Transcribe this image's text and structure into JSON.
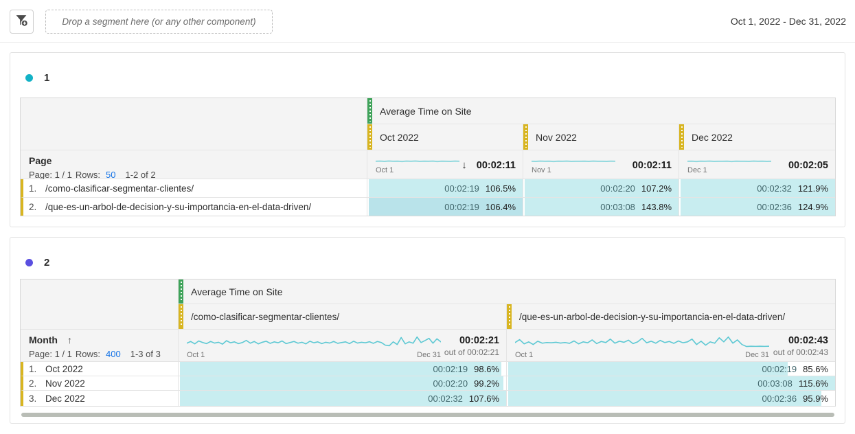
{
  "topbar": {
    "dropzone_text": "Drop a segment here (or any other component)",
    "date_range": "Oct 1, 2022 - Dec 31, 2022"
  },
  "colors": {
    "metric_handle": "#3fa35a",
    "dimension_handle": "#d8b521",
    "panel1_dot": "#13b2c6",
    "panel2_dot": "#5a4fe0",
    "cell_fill": "#c8edf0",
    "link_blue": "#1473e6"
  },
  "icons": {
    "filter": "segment-filter-icon",
    "sort_descending": "↓",
    "sort_ascending": "↑"
  },
  "panel1": {
    "title": "1",
    "metric_header": "Average Time on Site",
    "dim_header": "Page",
    "pagination": {
      "page_info": "Page: 1 / 1",
      "rows_label": "Rows:",
      "rows_value": "50",
      "range": "1-2 of 2"
    },
    "columns": [
      {
        "label": "Oct 2022",
        "spark_start": "Oct 1",
        "total": "00:02:11"
      },
      {
        "label": "Nov 2022",
        "spark_start": "Nov 1",
        "total": "00:02:11"
      },
      {
        "label": "Dec 2022",
        "spark_start": "Dec 1",
        "total": "00:02:05"
      }
    ],
    "rows": [
      {
        "num": "1.",
        "label": "/como-clasificar-segmentar-clientes/",
        "cells": [
          {
            "time": "00:02:19",
            "pct": "106.5%",
            "fill": 100
          },
          {
            "time": "00:02:20",
            "pct": "107.2%",
            "fill": 100
          },
          {
            "time": "00:02:32",
            "pct": "121.9%",
            "fill": 100
          }
        ]
      },
      {
        "num": "2.",
        "label": "/que-es-un-arbol-de-decision-y-su-importancia-en-el-data-driven/",
        "cells": [
          {
            "time": "00:02:19",
            "pct": "106.4%",
            "fill": 100,
            "shade": "#b9e3ea"
          },
          {
            "time": "00:03:08",
            "pct": "143.8%",
            "fill": 100
          },
          {
            "time": "00:02:36",
            "pct": "124.9%",
            "fill": 100
          }
        ]
      }
    ]
  },
  "panel2": {
    "title": "2",
    "metric_header": "Average Time on Site",
    "dim_header": "Month",
    "pagination": {
      "page_info": "Page: 1 / 1",
      "rows_label": "Rows:",
      "rows_value": "400",
      "range": "1-3 of 3"
    },
    "columns": [
      {
        "label": "/como-clasificar-segmentar-clientes/",
        "spark_start": "Oct 1",
        "spark_end": "Dec 31",
        "total": "00:02:21",
        "out_of": "out of 00:02:21"
      },
      {
        "label": "/que-es-un-arbol-de-decision-y-su-importancia-en-el-data-driven/",
        "spark_start": "Oct 1",
        "spark_end": "Dec 31",
        "total": "00:02:43",
        "out_of": "out of 00:02:43"
      }
    ],
    "rows": [
      {
        "num": "1.",
        "label": "Oct 2022",
        "cells": [
          {
            "time": "00:02:19",
            "pct": "98.6%",
            "fill": 98.6
          },
          {
            "time": "00:02:19",
            "pct": "85.6%",
            "fill": 85.6
          }
        ]
      },
      {
        "num": "2.",
        "label": "Nov 2022",
        "cells": [
          {
            "time": "00:02:20",
            "pct": "99.2%",
            "fill": 99.2
          },
          {
            "time": "00:03:08",
            "pct": "115.6%",
            "fill": 100
          }
        ]
      },
      {
        "num": "3.",
        "label": "Dec 2022",
        "cells": [
          {
            "time": "00:02:32",
            "pct": "107.6%",
            "fill": 100
          },
          {
            "time": "00:02:36",
            "pct": "95.9%",
            "fill": 95.9
          }
        ]
      }
    ]
  },
  "sparklines": {
    "p1c1": [
      0.5,
      0.53,
      0.49,
      0.54,
      0.5,
      0.52,
      0.48,
      0.53,
      0.5,
      0.54,
      0.49,
      0.52,
      0.5,
      0.53,
      0.48,
      0.52,
      0.5,
      0.49,
      0.53,
      0.5
    ],
    "p1c2": [
      0.51,
      0.49,
      0.53,
      0.5,
      0.52,
      0.48,
      0.52,
      0.5,
      0.53,
      0.49,
      0.51,
      0.5,
      0.52,
      0.49,
      0.53,
      0.5,
      0.51,
      0.49,
      0.52,
      0.5
    ],
    "p1c3": [
      0.5,
      0.52,
      0.48,
      0.52,
      0.5,
      0.53,
      0.49,
      0.51,
      0.5,
      0.52,
      0.48,
      0.52,
      0.5,
      0.51,
      0.49,
      0.53,
      0.5,
      0.52,
      0.49,
      0.51
    ],
    "p2c1": [
      0.45,
      0.58,
      0.4,
      0.62,
      0.5,
      0.42,
      0.58,
      0.46,
      0.52,
      0.38,
      0.64,
      0.48,
      0.55,
      0.42,
      0.5,
      0.66,
      0.45,
      0.58,
      0.4,
      0.52,
      0.6,
      0.44,
      0.55,
      0.48,
      0.62,
      0.42,
      0.5,
      0.58,
      0.45,
      0.52,
      0.4,
      0.6,
      0.48,
      0.55,
      0.42,
      0.52,
      0.46,
      0.58,
      0.44,
      0.5,
      0.55,
      0.42,
      0.6,
      0.46,
      0.52,
      0.48,
      0.56,
      0.44,
      0.58,
      0.5,
      0.3,
      0.26,
      0.55,
      0.35,
      0.88,
      0.4,
      0.55,
      0.45,
      0.92,
      0.5,
      0.65,
      0.82,
      0.45,
      0.78,
      0.55
    ],
    "p2c2": [
      0.5,
      0.72,
      0.4,
      0.55,
      0.35,
      0.6,
      0.45,
      0.5,
      0.48,
      0.52,
      0.46,
      0.5,
      0.44,
      0.62,
      0.4,
      0.55,
      0.48,
      0.7,
      0.42,
      0.58,
      0.5,
      0.76,
      0.45,
      0.6,
      0.52,
      0.68,
      0.42,
      0.55,
      0.82,
      0.48,
      0.6,
      0.45,
      0.66,
      0.5,
      0.58,
      0.44,
      0.62,
      0.48,
      0.55,
      0.76,
      0.35,
      0.6,
      0.3,
      0.55,
      0.45,
      0.86,
      0.55,
      0.92,
      0.45,
      0.7,
      0.35,
      0.2,
      0.22,
      0.21,
      0.22,
      0.21,
      0.22
    ]
  }
}
